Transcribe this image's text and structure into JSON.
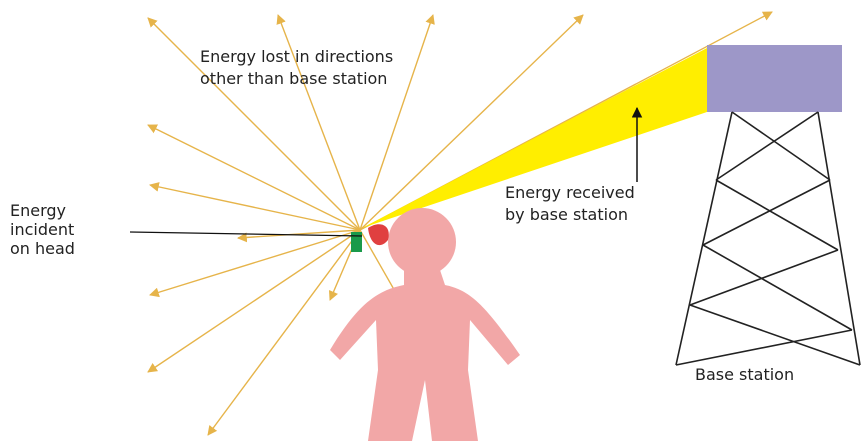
{
  "labels": {
    "energy_lost": [
      "Energy lost in directions",
      "other than base station"
    ],
    "energy_received": [
      "Energy received",
      "by base station"
    ],
    "energy_incident": [
      "Energy",
      "incident",
      "on head"
    ],
    "base_station": "Base station"
  }
}
